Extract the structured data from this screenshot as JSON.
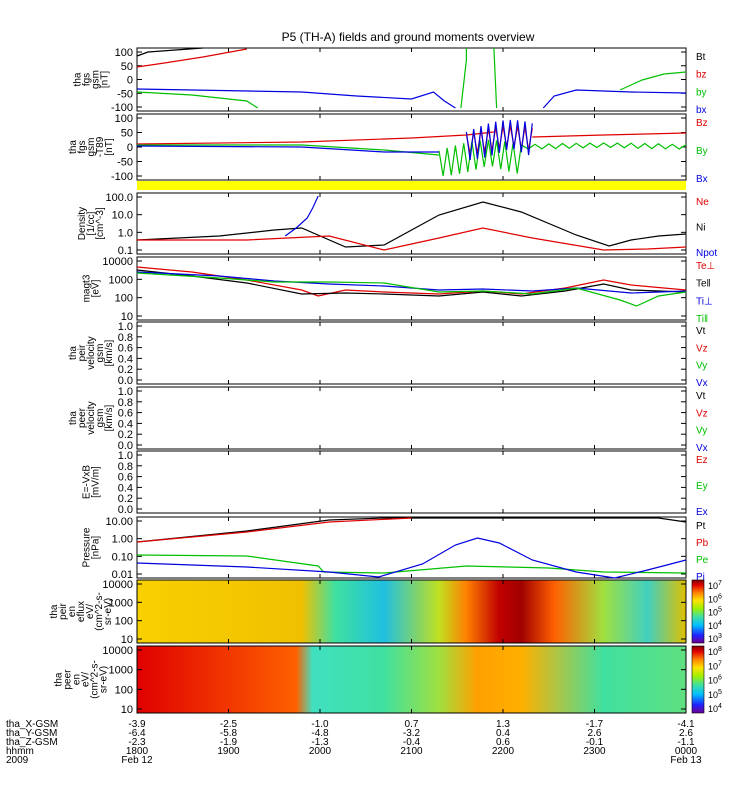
{
  "title": "P5 (TH-A) fields and ground moments overview",
  "chart_data": {
    "type": "line",
    "title": "P5 (TH-A) fields and ground moments overview",
    "panels": [
      {
        "id": "fgs",
        "ylabel": [
          "tha",
          "fgs",
          "gsm",
          "[nT]"
        ],
        "yticks": [
          "100",
          "50",
          "0",
          "-50",
          "-100"
        ],
        "ylim": [
          -110,
          110
        ],
        "legend": [
          {
            "label": "Bt",
            "color": "#000000"
          },
          {
            "label": "bz",
            "color": "#e00000"
          },
          {
            "label": "by",
            "color": "#00c000"
          },
          {
            "label": "bx",
            "color": "#0000e0"
          }
        ]
      },
      {
        "id": "fgs_t89",
        "ylabel": [
          "tha",
          "fgs",
          "gsm",
          "-T89",
          "[nT]"
        ],
        "yticks": [
          "100",
          "50",
          "0",
          "-50",
          "-100"
        ],
        "ylim": [
          -110,
          110
        ],
        "legend": [
          {
            "label": "Bz",
            "color": "#e00000"
          },
          {
            "label": "By",
            "color": "#00c000"
          },
          {
            "label": "Bx",
            "color": "#0000e0"
          }
        ]
      },
      {
        "id": "density",
        "ylabel": [
          "Density",
          "[1/cc]",
          "[cm^-3]"
        ],
        "yticks": [
          "100.0",
          "10.0",
          "1.0",
          "0.1"
        ],
        "scale": "log",
        "ylim": [
          0.1,
          200
        ],
        "legend": [
          {
            "label": "Ne",
            "color": "#e00000"
          },
          {
            "label": "Ni",
            "color": "#000000"
          },
          {
            "label": "Npot",
            "color": "#0000e0"
          }
        ]
      },
      {
        "id": "temperature",
        "ylabel": [
          "magt3",
          "[eV]"
        ],
        "yticks": [
          "10000",
          "1000",
          "100",
          "10"
        ],
        "scale": "log",
        "ylim": [
          10,
          10000
        ],
        "legend": [
          {
            "label": "Te⊥",
            "color": "#e00000"
          },
          {
            "label": "Te‖",
            "color": "#000000"
          },
          {
            "label": "Ti⊥",
            "color": "#0000e0"
          },
          {
            "label": "Ti‖",
            "color": "#00c000"
          }
        ]
      },
      {
        "id": "peir_velocity",
        "ylabel": [
          "tha",
          "peir",
          "velocity",
          "gsm",
          "[km/s]"
        ],
        "yticks": [
          "1.0",
          "0.8",
          "0.6",
          "0.4",
          "0.2",
          "0.0"
        ],
        "ylim": [
          0,
          1
        ],
        "legend": [
          {
            "label": "Vt",
            "color": "#000000"
          },
          {
            "label": "Vz",
            "color": "#e00000"
          },
          {
            "label": "Vy",
            "color": "#00c000"
          },
          {
            "label": "Vx",
            "color": "#0000e0"
          }
        ]
      },
      {
        "id": "peer_velocity",
        "ylabel": [
          "tha",
          "peer",
          "velocity",
          "gsm",
          "[km/s]"
        ],
        "yticks": [
          "1.0",
          "0.8",
          "0.6",
          "0.4",
          "0.2",
          "0.0"
        ],
        "ylim": [
          0,
          1
        ],
        "legend": [
          {
            "label": "Vt",
            "color": "#000000"
          },
          {
            "label": "Vz",
            "color": "#e00000"
          },
          {
            "label": "Vy",
            "color": "#00c000"
          },
          {
            "label": "Vx",
            "color": "#0000e0"
          }
        ]
      },
      {
        "id": "efield",
        "ylabel": [
          "E=-VxB",
          "[mV/m]"
        ],
        "yticks": [
          "1.0",
          "0.8",
          "0.6",
          "0.4",
          "0.2",
          "0.0"
        ],
        "ylim": [
          0,
          1
        ],
        "legend": [
          {
            "label": "Ez",
            "color": "#e00000"
          },
          {
            "label": "Ey",
            "color": "#00c000"
          },
          {
            "label": "Ex",
            "color": "#0000e0"
          }
        ]
      },
      {
        "id": "pressure",
        "ylabel": [
          "Pressure",
          "[nPa]"
        ],
        "yticks": [
          "10.00",
          "1.00",
          "0.10",
          "0.01"
        ],
        "scale": "log",
        "ylim": [
          0.005,
          30
        ],
        "legend": [
          {
            "label": "Pt",
            "color": "#000000"
          },
          {
            "label": "Pb",
            "color": "#e00000"
          },
          {
            "label": "Pe",
            "color": "#00c000"
          },
          {
            "label": "Pi",
            "color": "#0000e0"
          }
        ]
      },
      {
        "id": "peir_spec",
        "type": "heatmap",
        "ylabel": [
          "tha",
          "peir",
          "en",
          "eflux",
          "eV/",
          "(cm^2-s-",
          "sr-eV)"
        ],
        "yticks": [
          "10000",
          "1000",
          "100",
          "10"
        ],
        "colorbar_ticks": [
          "10^7",
          "10^6",
          "10^5",
          "10^4",
          "10^3"
        ]
      },
      {
        "id": "peer_spec",
        "type": "heatmap",
        "ylabel": [
          "tha",
          "peer",
          "en",
          "eV/",
          "(cm^2-s-",
          "sr-eV)"
        ],
        "yticks": [
          "10000",
          "1000",
          "100",
          "10"
        ],
        "colorbar_ticks": [
          "10^8",
          "10^7",
          "10^6",
          "10^5",
          "10^4"
        ]
      }
    ],
    "xaxis": {
      "times": [
        "1800",
        "1900",
        "2000",
        "2100",
        "2200",
        "2300",
        "0000"
      ],
      "tha_X_GSM": [
        "-3.9",
        "-2.5",
        "-1.0",
        "0.7",
        "1.3",
        "-1.7",
        "-4.1"
      ],
      "tha_Y_GSM": [
        "-6.4",
        "-5.8",
        "-4.8",
        "-3.2",
        "0.4",
        "2.6",
        "2.6"
      ],
      "tha_Z_GSM": [
        "-2.3",
        "-1.9",
        "-1.3",
        "-0.4",
        "0.6",
        "-0.1",
        "-1.1"
      ],
      "row_labels": [
        "tha_X-GSM",
        "tha_Y-GSM",
        "tha_Z-GSM",
        "hhmm",
        "2009"
      ],
      "date_start": "Feb 12",
      "date_end": "Feb 13"
    }
  }
}
